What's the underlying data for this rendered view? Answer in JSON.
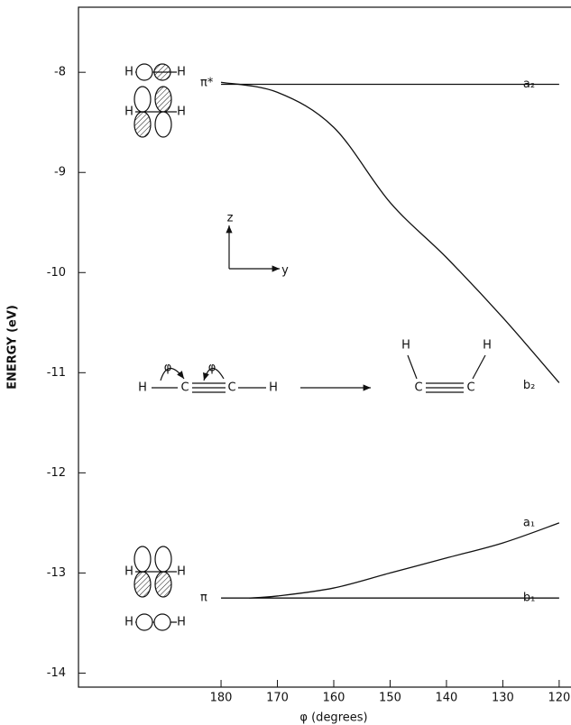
{
  "chart_data": {
    "type": "line",
    "xlabel": "φ (degrees)",
    "ylabel": "ENERGY (eV)",
    "xlim": [
      205.3,
      117.9
    ],
    "ylim": [
      -14.14,
      -7.35
    ],
    "xticks": [
      180,
      170,
      160,
      150,
      140,
      130,
      120
    ],
    "yticks": [
      -8,
      -9,
      -10,
      -11,
      -12,
      -13,
      -14
    ],
    "series": [
      {
        "name": "a₂",
        "color": "#111111",
        "x": [
          180,
          120
        ],
        "values": [
          -8.12,
          -8.12
        ]
      },
      {
        "name": "b₂",
        "color": "#111111",
        "x": [
          180,
          170,
          160,
          150,
          140,
          130,
          120
        ],
        "values": [
          -8.1,
          -8.2,
          -8.55,
          -9.3,
          -9.85,
          -10.45,
          -11.1
        ]
      },
      {
        "name": "a₁",
        "color": "#111111",
        "x": [
          175,
          170,
          160,
          150,
          140,
          130,
          120
        ],
        "values": [
          -13.25,
          -13.23,
          -13.15,
          -13.0,
          -12.85,
          -12.7,
          -12.5
        ]
      },
      {
        "name": "b₁",
        "color": "#111111",
        "x": [
          180,
          120
        ],
        "values": [
          -13.25,
          -13.25
        ]
      }
    ],
    "level_labels": [
      "π*",
      "π"
    ],
    "diagram_labels": [
      "H",
      "H",
      "H",
      "H",
      "H",
      "H",
      "H",
      "H",
      "z",
      "y",
      "H",
      "C",
      "C",
      "H",
      "φ",
      "φ",
      "H",
      "H",
      "C",
      "C"
    ]
  }
}
